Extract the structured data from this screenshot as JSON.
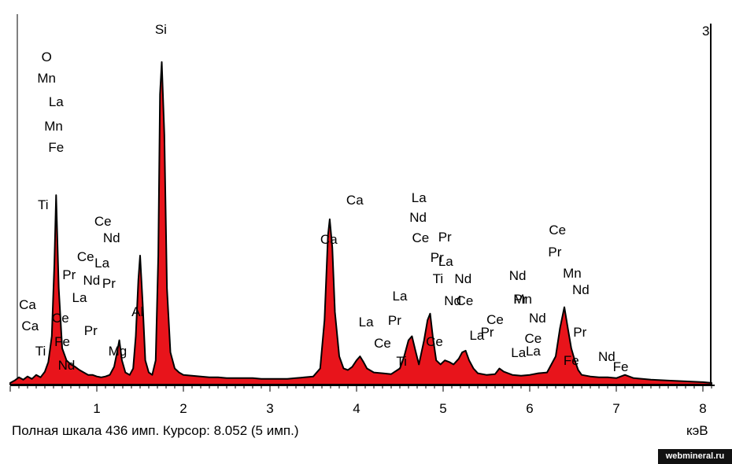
{
  "chart_data": {
    "type": "area",
    "title": "",
    "xlabel": "кэВ",
    "ylabel": "",
    "xlim": [
      0,
      8.1
    ],
    "ylim": [
      0,
      436
    ],
    "grid": false,
    "x_ticks": [
      "1",
      "2",
      "3",
      "4",
      "5",
      "6",
      "7",
      "8"
    ],
    "series": [
      {
        "color": "#e8141b",
        "x": [
          0.0,
          0.05,
          0.1,
          0.15,
          0.2,
          0.25,
          0.3,
          0.35,
          0.4,
          0.44,
          0.48,
          0.51,
          0.53,
          0.56,
          0.6,
          0.65,
          0.7,
          0.75,
          0.8,
          0.85,
          0.9,
          0.95,
          1.0,
          1.05,
          1.1,
          1.15,
          1.2,
          1.23,
          1.26,
          1.29,
          1.33,
          1.38,
          1.42,
          1.45,
          1.48,
          1.5,
          1.53,
          1.56,
          1.6,
          1.64,
          1.68,
          1.71,
          1.73,
          1.75,
          1.78,
          1.81,
          1.85,
          1.9,
          1.95,
          2.0,
          2.1,
          2.2,
          2.3,
          2.4,
          2.5,
          2.6,
          2.7,
          2.8,
          2.9,
          3.0,
          3.1,
          3.2,
          3.3,
          3.4,
          3.5,
          3.58,
          3.63,
          3.67,
          3.69,
          3.72,
          3.75,
          3.8,
          3.85,
          3.9,
          3.95,
          4.0,
          4.04,
          4.08,
          4.12,
          4.2,
          4.3,
          4.4,
          4.5,
          4.55,
          4.6,
          4.64,
          4.68,
          4.72,
          4.78,
          4.82,
          4.85,
          4.88,
          4.92,
          4.97,
          5.02,
          5.07,
          5.12,
          5.18,
          5.22,
          5.26,
          5.3,
          5.35,
          5.4,
          5.5,
          5.6,
          5.65,
          5.7,
          5.8,
          5.9,
          6.0,
          6.1,
          6.2,
          6.3,
          6.35,
          6.4,
          6.44,
          6.48,
          6.52,
          6.56,
          6.6,
          6.7,
          6.8,
          6.9,
          7.0,
          7.1,
          7.2,
          7.4,
          7.6,
          7.8,
          8.0,
          8.1
        ],
        "y": [
          2,
          5,
          9,
          6,
          10,
          7,
          12,
          9,
          16,
          28,
          60,
          150,
          235,
          120,
          45,
          30,
          25,
          22,
          18,
          15,
          12,
          12,
          10,
          9,
          10,
          12,
          22,
          38,
          55,
          30,
          15,
          12,
          20,
          60,
          130,
          160,
          100,
          30,
          15,
          12,
          30,
          160,
          360,
          400,
          310,
          120,
          40,
          20,
          15,
          12,
          11,
          10,
          9,
          9,
          8,
          8,
          8,
          8,
          7,
          7,
          7,
          7,
          8,
          9,
          10,
          20,
          80,
          185,
          205,
          170,
          90,
          35,
          20,
          18,
          22,
          30,
          35,
          28,
          20,
          15,
          14,
          13,
          20,
          35,
          55,
          60,
          42,
          25,
          55,
          80,
          88,
          60,
          30,
          25,
          30,
          28,
          25,
          32,
          40,
          42,
          30,
          20,
          14,
          12,
          13,
          20,
          16,
          12,
          11,
          12,
          14,
          15,
          35,
          70,
          96,
          70,
          45,
          30,
          18,
          12,
          10,
          9,
          9,
          8,
          12,
          8,
          6,
          5,
          4,
          3,
          2
        ]
      }
    ],
    "annotations": [
      {
        "text": "Si",
        "x": 1.74
      },
      {
        "text": "O",
        "x": 0.42
      },
      {
        "text": "Mn",
        "x": 0.42
      },
      {
        "text": "La",
        "x": 0.53
      },
      {
        "text": "Mn",
        "x": 0.5
      },
      {
        "text": "Fe",
        "x": 0.53
      },
      {
        "text": "Ti",
        "x": 0.38
      },
      {
        "text": "Ca",
        "x": 0.2
      },
      {
        "text": "Ca",
        "x": 0.23
      },
      {
        "text": "Ti",
        "x": 0.35
      },
      {
        "text": "Ce",
        "x": 0.58
      },
      {
        "text": "Fe",
        "x": 0.6
      },
      {
        "text": "Nd",
        "x": 0.65
      },
      {
        "text": "Pr",
        "x": 0.68
      },
      {
        "text": "La",
        "x": 0.8
      },
      {
        "text": "Ce",
        "x": 0.87
      },
      {
        "text": "Nd",
        "x": 0.94
      },
      {
        "text": "Pr",
        "x": 0.93
      },
      {
        "text": "Mg",
        "x": 1.24
      },
      {
        "text": "Ce",
        "x": 1.07
      },
      {
        "text": "Nd",
        "x": 1.17
      },
      {
        "text": "La",
        "x": 1.06
      },
      {
        "text": "Pr",
        "x": 1.14
      },
      {
        "text": "Al",
        "x": 1.47
      },
      {
        "text": "Ca",
        "x": 3.68
      },
      {
        "text": "Ca",
        "x": 3.98
      },
      {
        "text": "La",
        "x": 4.11
      },
      {
        "text": "Ce",
        "x": 4.3
      },
      {
        "text": "Ti",
        "x": 4.52
      },
      {
        "text": "La",
        "x": 4.5
      },
      {
        "text": "Pr",
        "x": 4.44
      },
      {
        "text": "Ce",
        "x": 4.9
      },
      {
        "text": "La",
        "x": 4.72
      },
      {
        "text": "Nd",
        "x": 4.71
      },
      {
        "text": "Ce",
        "x": 4.74
      },
      {
        "text": "La",
        "x": 5.03
      },
      {
        "text": "Pr",
        "x": 5.02
      },
      {
        "text": "Pr",
        "x": 4.93
      },
      {
        "text": "Ti",
        "x": 4.94
      },
      {
        "text": "Ce",
        "x": 5.25
      },
      {
        "text": "Nd",
        "x": 5.23
      },
      {
        "text": "Nd",
        "x": 5.11
      },
      {
        "text": "La",
        "x": 5.39
      },
      {
        "text": "Ce",
        "x": 5.6
      },
      {
        "text": "Pr",
        "x": 5.51
      },
      {
        "text": "La",
        "x": 5.87
      },
      {
        "text": "Nd",
        "x": 5.86
      },
      {
        "text": "Mn",
        "x": 5.92
      },
      {
        "text": "Nd",
        "x": 6.09
      },
      {
        "text": "Pr",
        "x": 5.89
      },
      {
        "text": "La",
        "x": 6.04
      },
      {
        "text": "Ce",
        "x": 6.04
      },
      {
        "text": "Fe",
        "x": 6.48
      },
      {
        "text": "Ce",
        "x": 6.32
      },
      {
        "text": "Pr",
        "x": 6.29
      },
      {
        "text": "Mn",
        "x": 6.49
      },
      {
        "text": "Nd",
        "x": 6.59
      },
      {
        "text": "Pr",
        "x": 6.58
      },
      {
        "text": "Nd",
        "x": 6.89
      },
      {
        "text": "Fe",
        "x": 7.05
      }
    ]
  },
  "status_bar": {
    "text": "Полная шкала 436 имп. Курсор: 8.052  (5 имп.)",
    "unit": "кэВ"
  },
  "marker_label": "3",
  "watermark": "webmineral.ru"
}
